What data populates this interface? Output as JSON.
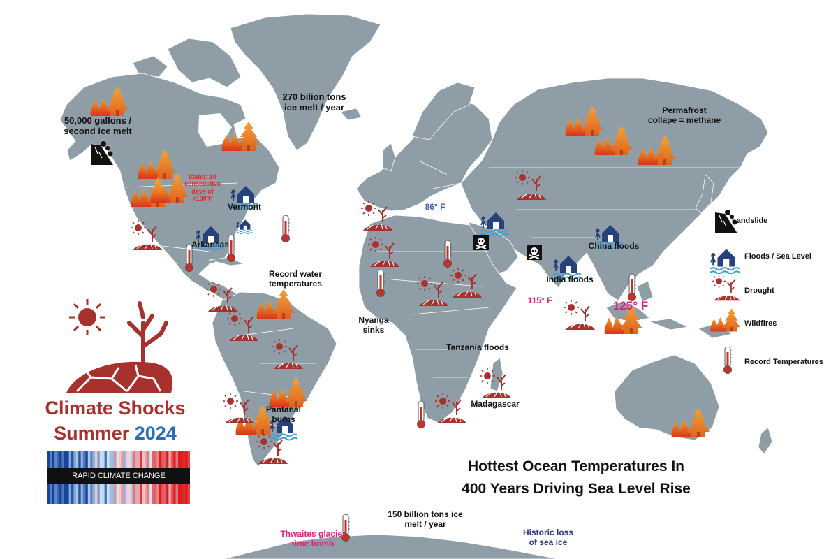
{
  "title": {
    "line1": "Climate Shocks",
    "line2_word": "Summer",
    "line2_year": "2024"
  },
  "stripes_label": "RAPID CLIMATE CHANGE",
  "headline": {
    "line1": "Hottest Ocean Temperatures In",
    "line2": "400 Years Driving Sea Level Rise"
  },
  "legend": [
    {
      "icon": "landslide-icon",
      "label": "Landslide"
    },
    {
      "icon": "flood-house-icon",
      "label": "Floods / Sea Level"
    },
    {
      "icon": "drought-icon",
      "label": "Drought"
    },
    {
      "icon": "wildfire-icon",
      "label": "Wildfires"
    },
    {
      "icon": "thermometer-icon",
      "label": "Record Temperatures"
    }
  ],
  "labels": {
    "alaska": "50,000 gallons /\nsecond ice melt",
    "greenland": "270 bilion tons\nice melt / year",
    "permafrost": "Permafrost\ncollape = methane",
    "idaho": "Idaho: 10\nconsecutive\ndays of\n+100°F",
    "vermont": "Vermont",
    "arkansas": "Arkansas",
    "record_water": "Record water\ntemperatures",
    "temp_86": "86° F",
    "china": "China floods",
    "india": "India floods",
    "temp_115": "115° F",
    "temp_125": "125° F",
    "nyanga": "Nyanga\nsinks",
    "tanzania": "Tanzania floods",
    "madagascar": "Madagascar",
    "pantanal": "Pantanal\nburns",
    "thwaites": "Thwaites glacier\ntime bomb",
    "antarctic_melt": "150 billion tons ice\nmelt / year",
    "sea_ice": "Historic loss\nof sea ice"
  },
  "colors": {
    "land": "#8f9ea6",
    "borders": "#ffffff",
    "fire_orange": "#e0621f",
    "drought_red": "#a7312c",
    "flood_blue": "#27417a",
    "water_blue": "#3b9fd8",
    "title_red": "#a7312c",
    "title_blue": "#2a6fb6",
    "magenta": "#e0247e",
    "navy_text": "#2b3580"
  }
}
